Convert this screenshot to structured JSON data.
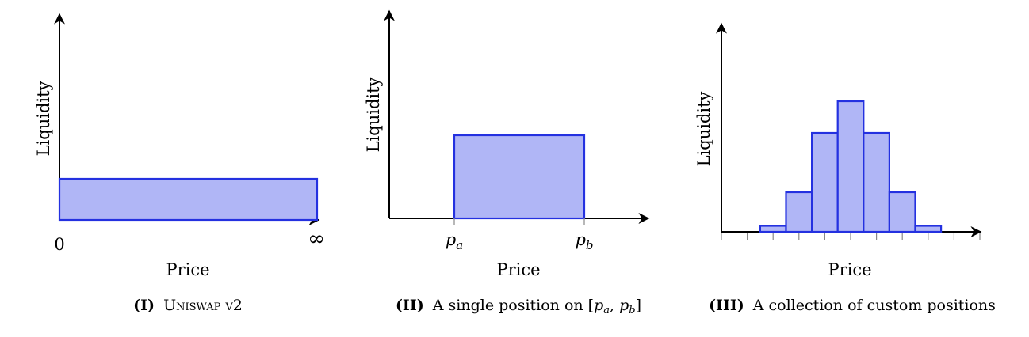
{
  "panels": [
    {
      "id": "I",
      "ylabel": "Liquidity",
      "xlabel": "Price",
      "ticks": [
        "0",
        "∞"
      ],
      "caption_num": "(I)",
      "caption_text": "Uniswap v2",
      "liquidity": [
        {
          "x_start": 0,
          "x_end": 1,
          "height": 0.2
        }
      ]
    },
    {
      "id": "II",
      "ylabel": "Liquidity",
      "xlabel": "Price",
      "ticks": [
        "p_a",
        "p_b"
      ],
      "caption_num": "(II)",
      "caption_text": "A single position on [p_a, p_b]",
      "liquidity": [
        {
          "x_start": 0.25,
          "x_end": 0.75,
          "height": 0.42
        }
      ]
    },
    {
      "id": "III",
      "ylabel": "Liquidity",
      "xlabel": "Price",
      "ticks": [],
      "caption_num": "(III)",
      "caption_text": "A collection of custom positions",
      "liquidity_heights": [
        0.03,
        0.2,
        0.5,
        0.66,
        0.5,
        0.2,
        0.03
      ]
    }
  ],
  "colors": {
    "fill": "#b0b6f6",
    "stroke": "#2431e0"
  }
}
